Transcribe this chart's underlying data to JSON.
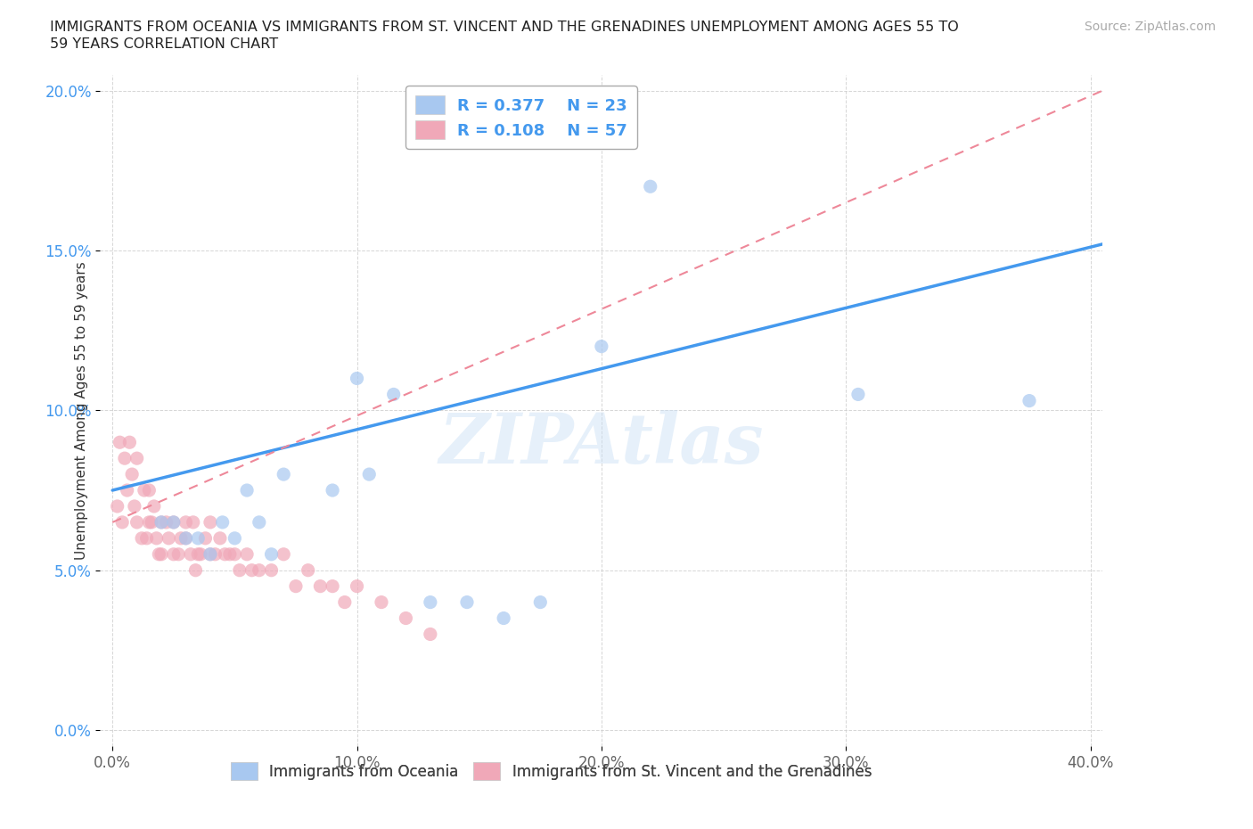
{
  "title_line1": "IMMIGRANTS FROM OCEANIA VS IMMIGRANTS FROM ST. VINCENT AND THE GRENADINES UNEMPLOYMENT AMONG AGES 55 TO",
  "title_line2": "59 YEARS CORRELATION CHART",
  "source": "Source: ZipAtlas.com",
  "xlabel_ticks": [
    "0.0%",
    "10.0%",
    "20.0%",
    "30.0%",
    "40.0%"
  ],
  "xlabel_vals": [
    0.0,
    0.1,
    0.2,
    0.3,
    0.4
  ],
  "ylabel_ticks": [
    "0.0%",
    "5.0%",
    "10.0%",
    "15.0%",
    "20.0%"
  ],
  "ylabel_vals": [
    0.0,
    0.05,
    0.1,
    0.15,
    0.2
  ],
  "xlim": [
    -0.005,
    0.405
  ],
  "ylim": [
    -0.005,
    0.205
  ],
  "R_oceania": 0.377,
  "N_oceania": 23,
  "R_vincent": 0.108,
  "N_vincent": 57,
  "oceania_color": "#a8c8f0",
  "vincent_color": "#f0a8b8",
  "trend_oceania_color": "#4499ee",
  "trend_vincent_color": "#ee8899",
  "watermark": "ZIPAtlas",
  "ylabel": "Unemployment Among Ages 55 to 59 years",
  "oceania_label": "Immigrants from Oceania",
  "vincent_label": "Immigrants from St. Vincent and the Grenadines",
  "oceania_x": [
    0.02,
    0.025,
    0.03,
    0.035,
    0.04,
    0.045,
    0.05,
    0.055,
    0.06,
    0.065,
    0.07,
    0.09,
    0.1,
    0.105,
    0.115,
    0.13,
    0.145,
    0.16,
    0.175,
    0.2,
    0.22,
    0.305,
    0.375
  ],
  "oceania_y": [
    0.065,
    0.065,
    0.06,
    0.06,
    0.055,
    0.065,
    0.06,
    0.075,
    0.065,
    0.055,
    0.08,
    0.075,
    0.11,
    0.08,
    0.105,
    0.04,
    0.04,
    0.035,
    0.04,
    0.12,
    0.17,
    0.105,
    0.103
  ],
  "vincent_x": [
    0.002,
    0.003,
    0.004,
    0.005,
    0.006,
    0.007,
    0.008,
    0.009,
    0.01,
    0.01,
    0.012,
    0.013,
    0.014,
    0.015,
    0.015,
    0.016,
    0.017,
    0.018,
    0.019,
    0.02,
    0.02,
    0.022,
    0.023,
    0.025,
    0.025,
    0.027,
    0.028,
    0.03,
    0.03,
    0.032,
    0.033,
    0.034,
    0.035,
    0.036,
    0.038,
    0.04,
    0.04,
    0.042,
    0.044,
    0.046,
    0.048,
    0.05,
    0.052,
    0.055,
    0.057,
    0.06,
    0.065,
    0.07,
    0.075,
    0.08,
    0.085,
    0.09,
    0.095,
    0.1,
    0.11,
    0.12,
    0.13
  ],
  "vincent_y": [
    0.07,
    0.09,
    0.065,
    0.085,
    0.075,
    0.09,
    0.08,
    0.07,
    0.085,
    0.065,
    0.06,
    0.075,
    0.06,
    0.065,
    0.075,
    0.065,
    0.07,
    0.06,
    0.055,
    0.065,
    0.055,
    0.065,
    0.06,
    0.055,
    0.065,
    0.055,
    0.06,
    0.06,
    0.065,
    0.055,
    0.065,
    0.05,
    0.055,
    0.055,
    0.06,
    0.055,
    0.065,
    0.055,
    0.06,
    0.055,
    0.055,
    0.055,
    0.05,
    0.055,
    0.05,
    0.05,
    0.05,
    0.055,
    0.045,
    0.05,
    0.045,
    0.045,
    0.04,
    0.045,
    0.04,
    0.035,
    0.03
  ],
  "trend_blue_x0": 0.0,
  "trend_blue_y0": 0.075,
  "trend_blue_x1": 0.405,
  "trend_blue_y1": 0.152,
  "trend_pink_x0": 0.0,
  "trend_pink_y0": 0.065,
  "trend_pink_x1": 0.405,
  "trend_pink_y1": 0.2
}
